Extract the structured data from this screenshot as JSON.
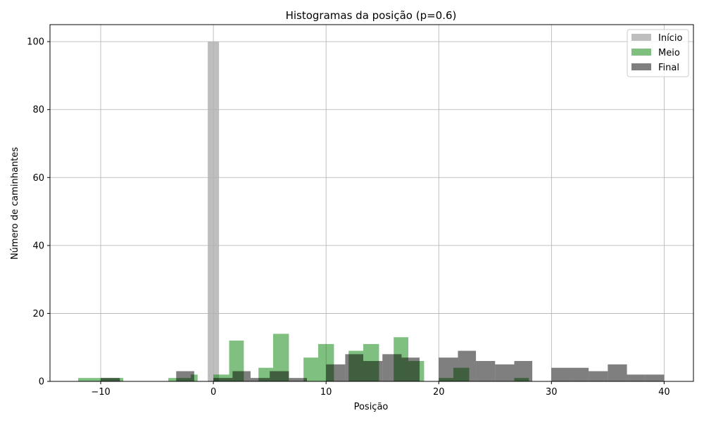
{
  "chart_data": {
    "type": "bar",
    "title": "Histogramas da posição (p=0.6)",
    "xlabel": "Posição",
    "ylabel": "Número de caminhantes",
    "xlim": [
      -14.5,
      42.6
    ],
    "ylim": [
      0,
      105
    ],
    "xticks": [
      -10,
      0,
      10,
      20,
      30,
      40
    ],
    "xtick_labels": [
      "−10",
      "0",
      "10",
      "20",
      "30",
      "40"
    ],
    "yticks": [
      0,
      20,
      40,
      60,
      80,
      100
    ],
    "ytick_labels": [
      "0",
      "20",
      "40",
      "60",
      "80",
      "100"
    ],
    "grid": true,
    "legend_position": "top-right",
    "series": [
      {
        "name": "Início",
        "color": "#b3b3b3",
        "opacity": 0.85,
        "bins": [
          {
            "x0": -0.5,
            "x1": 0.5,
            "value": 100
          }
        ]
      },
      {
        "name": "Meio",
        "color": "#008000",
        "opacity": 0.5,
        "bins": [
          {
            "x0": -12.0,
            "x1": -10.0,
            "value": 1
          },
          {
            "x0": -10.0,
            "x1": -8.0,
            "value": 1
          },
          {
            "x0": -4.0,
            "x1": -2.0,
            "value": 1
          },
          {
            "x0": -2.0,
            "x1": -1.4,
            "value": 2
          },
          {
            "x0": 0.0,
            "x1": 1.4,
            "value": 2
          },
          {
            "x0": 1.4,
            "x1": 2.7,
            "value": 12
          },
          {
            "x0": 4.0,
            "x1": 5.3,
            "value": 4
          },
          {
            "x0": 5.3,
            "x1": 6.7,
            "value": 14
          },
          {
            "x0": 8.0,
            "x1": 9.3,
            "value": 7
          },
          {
            "x0": 9.3,
            "x1": 10.7,
            "value": 11
          },
          {
            "x0": 12.0,
            "x1": 13.3,
            "value": 9
          },
          {
            "x0": 13.3,
            "x1": 14.7,
            "value": 11
          },
          {
            "x0": 16.0,
            "x1": 17.3,
            "value": 13
          },
          {
            "x0": 17.3,
            "x1": 18.7,
            "value": 6
          },
          {
            "x0": 20.0,
            "x1": 21.3,
            "value": 1
          },
          {
            "x0": 21.3,
            "x1": 22.7,
            "value": 4
          },
          {
            "x0": 26.7,
            "x1": 28.0,
            "value": 1
          }
        ]
      },
      {
        "name": "Final",
        "color": "#000000",
        "opacity": 0.5,
        "bins": [
          {
            "x0": -10.0,
            "x1": -8.3,
            "value": 1
          },
          {
            "x0": -3.3,
            "x1": -1.7,
            "value": 3
          },
          {
            "x0": 0.0,
            "x1": 1.7,
            "value": 1
          },
          {
            "x0": 1.7,
            "x1": 3.3,
            "value": 3
          },
          {
            "x0": 3.3,
            "x1": 5.0,
            "value": 1
          },
          {
            "x0": 5.0,
            "x1": 6.7,
            "value": 3
          },
          {
            "x0": 6.7,
            "x1": 8.3,
            "value": 1
          },
          {
            "x0": 10.0,
            "x1": 11.7,
            "value": 5
          },
          {
            "x0": 11.7,
            "x1": 13.3,
            "value": 8
          },
          {
            "x0": 13.3,
            "x1": 15.0,
            "value": 6
          },
          {
            "x0": 15.0,
            "x1": 16.7,
            "value": 8
          },
          {
            "x0": 16.7,
            "x1": 18.3,
            "value": 7
          },
          {
            "x0": 20.0,
            "x1": 21.7,
            "value": 7
          },
          {
            "x0": 21.7,
            "x1": 23.3,
            "value": 9
          },
          {
            "x0": 23.3,
            "x1": 25.0,
            "value": 6
          },
          {
            "x0": 25.0,
            "x1": 26.7,
            "value": 5
          },
          {
            "x0": 26.7,
            "x1": 28.3,
            "value": 6
          },
          {
            "x0": 30.0,
            "x1": 31.7,
            "value": 4
          },
          {
            "x0": 31.7,
            "x1": 33.3,
            "value": 4
          },
          {
            "x0": 33.3,
            "x1": 35.0,
            "value": 3
          },
          {
            "x0": 35.0,
            "x1": 36.7,
            "value": 5
          },
          {
            "x0": 36.7,
            "x1": 38.3,
            "value": 2
          },
          {
            "x0": 38.3,
            "x1": 40.0,
            "value": 2
          }
        ]
      }
    ]
  }
}
